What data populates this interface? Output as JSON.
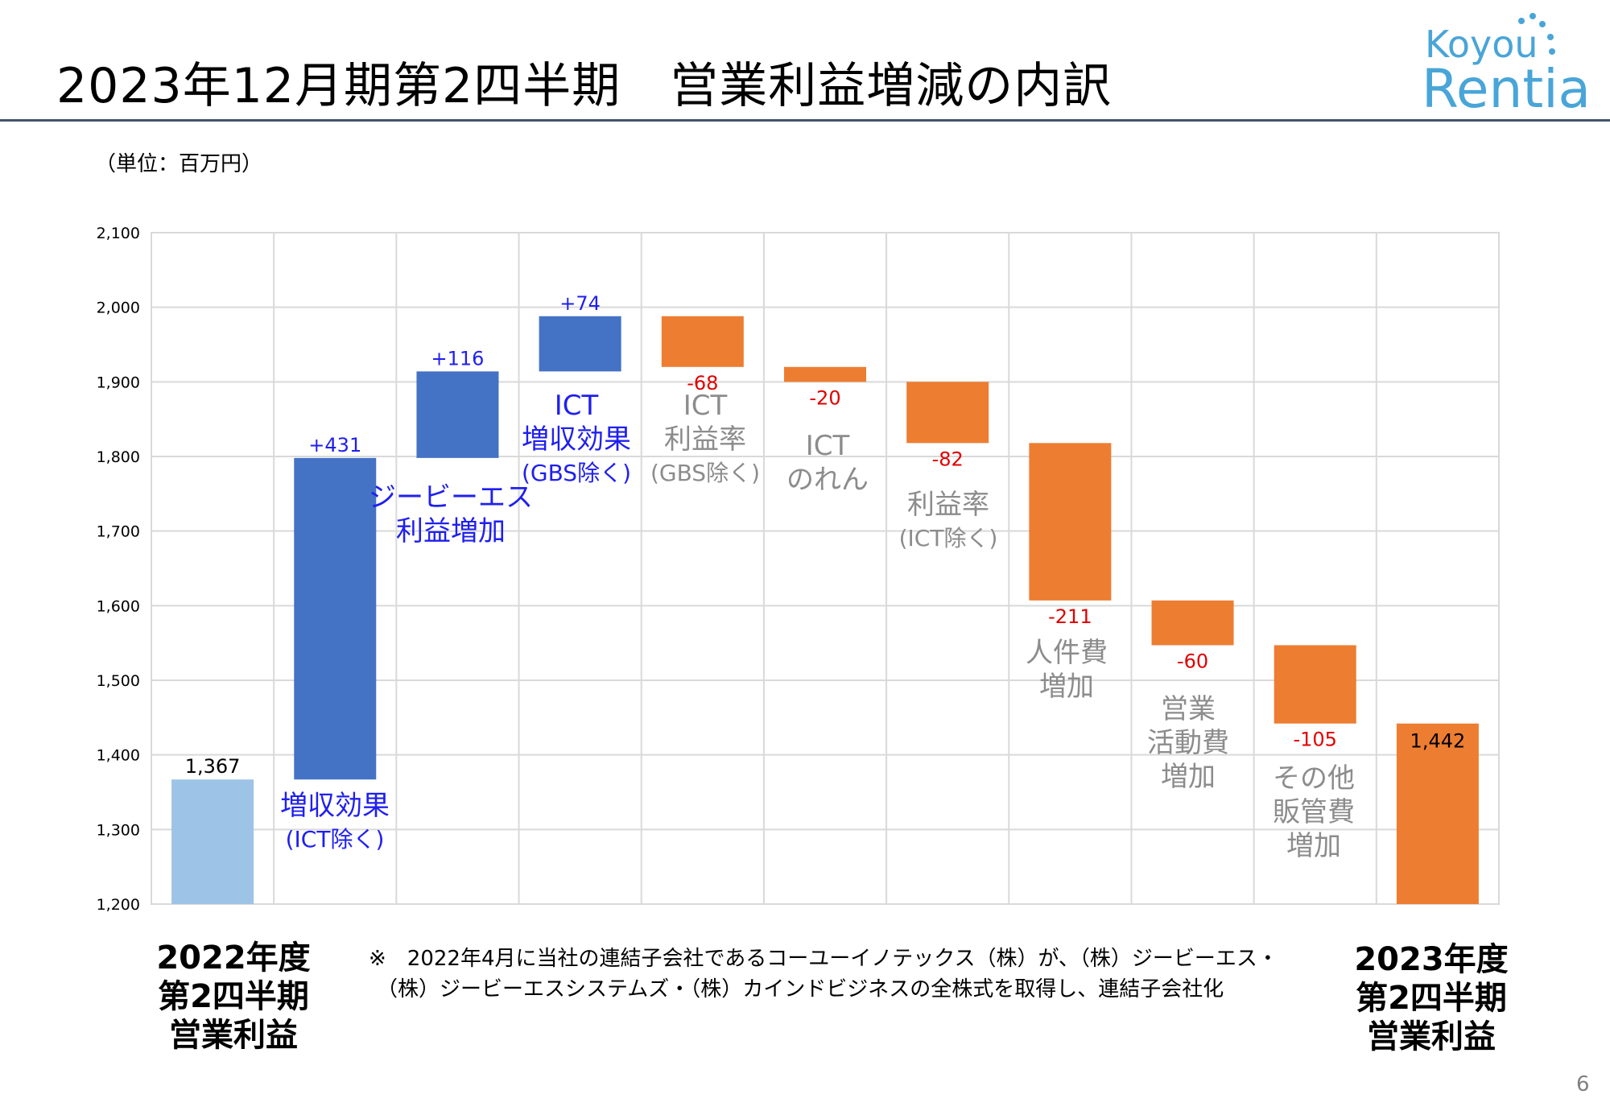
{
  "header": {
    "title": "2023年12月期第2四半期　営業利益増減の内訳",
    "unit": "（単位：百万円）"
  },
  "logo": {
    "line1": "Koyou",
    "line2": "Rentia",
    "color": "#49a5d8"
  },
  "colors": {
    "base_start": "#9dc3e6",
    "increase": "#4472c4",
    "decrease": "#ed7d31",
    "end": "#ed7d31",
    "increase_label": "#1f1ff0",
    "decrease_label": "#e00000",
    "gray_caption": "#8c8c8c"
  },
  "chart_data": {
    "type": "bar",
    "subtype": "waterfall",
    "unit": "百万円",
    "ylim": [
      1200,
      2100
    ],
    "yticks": [
      "1,200",
      "1,300",
      "1,400",
      "1,500",
      "1,600",
      "1,700",
      "1,800",
      "1,900",
      "2,000",
      "2,100"
    ],
    "grid": true,
    "bars": [
      {
        "kind": "total_start",
        "low": 1200,
        "high": 1367,
        "label": "1,367"
      },
      {
        "kind": "increase",
        "low": 1367,
        "high": 1798,
        "label": "+431"
      },
      {
        "kind": "increase",
        "low": 1798,
        "high": 1914,
        "label": "+116"
      },
      {
        "kind": "increase",
        "low": 1914,
        "high": 1988,
        "label": "+74"
      },
      {
        "kind": "decrease",
        "low": 1920,
        "high": 1988,
        "label": "-68"
      },
      {
        "kind": "decrease",
        "low": 1900,
        "high": 1920,
        "label": "-20"
      },
      {
        "kind": "decrease",
        "low": 1818,
        "high": 1900,
        "label": "-82"
      },
      {
        "kind": "decrease",
        "low": 1607,
        "high": 1818,
        "label": "-211"
      },
      {
        "kind": "decrease",
        "low": 1547,
        "high": 1607,
        "label": "-60"
      },
      {
        "kind": "decrease",
        "low": 1442,
        "high": 1547,
        "label": "-105"
      },
      {
        "kind": "total_end",
        "low": 1200,
        "high": 1442,
        "label": "1,442"
      }
    ]
  },
  "captions": {
    "c1": {
      "line1": "増収効果",
      "line2": "(ICT除く)"
    },
    "c2": {
      "line1": "ジービーエス",
      "line2": "利益増加"
    },
    "c3": {
      "line1": "ICT",
      "line2": "増収効果",
      "line3": "(GBS除く)"
    },
    "c4": {
      "line1": "ICT",
      "line2": "利益率",
      "line3": "(GBS除く)"
    },
    "c5": {
      "line1": "ICT",
      "line2": "のれん"
    },
    "c6": {
      "line1": "利益率",
      "line2": "(ICT除く)"
    },
    "c7": {
      "line1": "人件費",
      "line2": "増加"
    },
    "c8": {
      "line1": "営業",
      "line2": "活動費",
      "line3": "増加"
    },
    "c9": {
      "line1": "その他",
      "line2": "販管費",
      "line3": "増加"
    }
  },
  "bottom_left": {
    "line1": "2022年度",
    "line2": "第2四半期",
    "line3": "営業利益"
  },
  "bottom_right": {
    "line1": "2023年度",
    "line2": "第2四半期",
    "line3": "営業利益"
  },
  "note": {
    "line1": "※　2022年4月に当社の連結子会社であるコーユーイノテックス（株）が、（株）ジービーエス・",
    "line2": "（株）ジービーエスシステムズ・（株）カインドビジネスの全株式を取得し、連結子会社化"
  },
  "page_number": "6"
}
